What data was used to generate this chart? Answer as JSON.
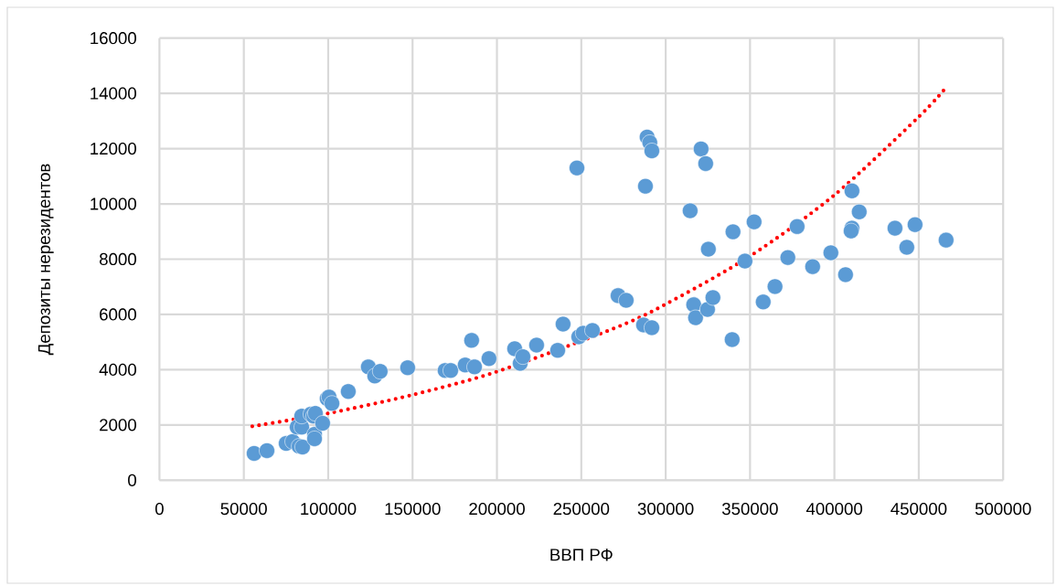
{
  "chart_data": {
    "type": "scatter",
    "xlabel": "ВВП РФ",
    "ylabel": "Депозиты нерезидентов",
    "xlim": [
      0,
      500000
    ],
    "ylim": [
      0,
      16000
    ],
    "xticks": [
      0,
      50000,
      100000,
      150000,
      200000,
      250000,
      300000,
      350000,
      400000,
      450000,
      500000
    ],
    "yticks": [
      0,
      2000,
      4000,
      6000,
      8000,
      10000,
      12000,
      14000,
      16000
    ],
    "grid": true,
    "series": [
      {
        "color": "#5b9bd5",
        "marker": "circle",
        "x": [
          56100,
          63700,
          75100,
          78900,
          81600,
          84300,
          82700,
          84800,
          84300,
          89700,
          91300,
          91900,
          91900,
          92400,
          96700,
          99400,
          100500,
          102200,
          111900,
          123800,
          127600,
          130800,
          147100,
          169300,
          172600,
          181200,
          185000,
          186700,
          195300,
          210500,
          213800,
          215400,
          223500,
          236000,
          239200,
          248500,
          251100,
          256600,
          247400,
          271800,
          276600,
          286900,
          291800,
          288000,
          289000,
          290600,
          291800,
          314500,
          321000,
          323700,
          316600,
          317700,
          324800,
          328000,
          339400,
          339900,
          352400,
          325300,
          347000,
          377900,
          372400,
          387100,
          397900,
          406600,
          410400,
          414700,
          410400,
          409900,
          435900,
          442900,
          447800,
          466200,
          357800,
          364800
        ],
        "values": [
          970,
          1070,
          1330,
          1400,
          1920,
          1920,
          1230,
          1200,
          2320,
          2390,
          2320,
          1660,
          1500,
          2420,
          2060,
          2950,
          3010,
          2780,
          3210,
          4100,
          3770,
          3940,
          4070,
          3970,
          3970,
          4170,
          5060,
          4100,
          4400,
          4760,
          4230,
          4470,
          4890,
          4700,
          5650,
          5190,
          5320,
          5420,
          11300,
          6680,
          6510,
          5620,
          5520,
          10640,
          12420,
          12220,
          11920,
          9750,
          11990,
          11460,
          6350,
          5880,
          6180,
          6610,
          5090,
          8990,
          9350,
          8360,
          7930,
          9180,
          8060,
          7730,
          8230,
          7440,
          10470,
          9710,
          9120,
          9020,
          9120,
          8430,
          9250,
          8690,
          6450,
          7010
        ]
      },
      {
        "type": "line",
        "color": "#ff0000",
        "marker": "none",
        "line_style": "dotted",
        "x": [
          55000,
          100000,
          150000,
          200000,
          270000,
          300000,
          350000,
          400000,
          450000,
          466000
        ],
        "values": [
          1950,
          2420,
          3090,
          3930,
          5510,
          6370,
          8110,
          10320,
          13150,
          14200
        ]
      }
    ]
  }
}
